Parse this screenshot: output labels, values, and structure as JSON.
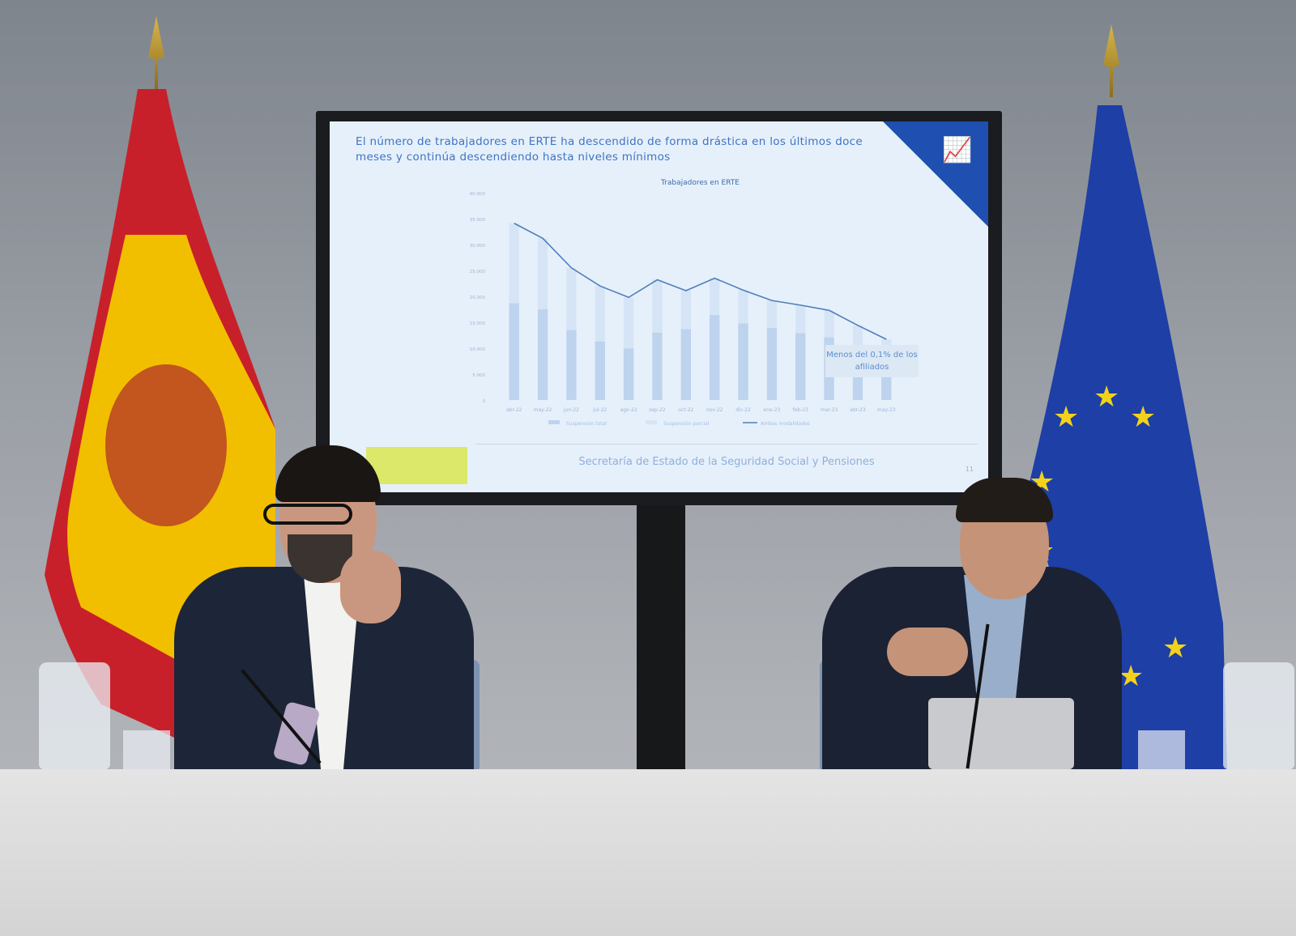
{
  "slide": {
    "title": "El número de trabajadores en ERTE ha descendido de forma drástica en los últimos doce meses y continúa descendiendo hasta niveles mínimos",
    "callout": "Menos del 0,1% de los afiliados",
    "footer": "Secretaría de Estado de la Seguridad Social y Pensiones",
    "page": "11",
    "icon": "presentation-chart-icon"
  },
  "chart_data": {
    "type": "bar",
    "title": "Trabajadores en ERTE",
    "categories": [
      "abr-22",
      "may-22",
      "jun-22",
      "jul-22",
      "ago-22",
      "sep-22",
      "oct-22",
      "nov-22",
      "dic-22",
      "ene-23",
      "feb-23",
      "mar-23",
      "abr-23",
      "may-23"
    ],
    "ylim": [
      0,
      40000
    ],
    "yticks": [
      "0",
      "5.000",
      "10.000",
      "15.000",
      "20.000",
      "25.000",
      "30.000",
      "35.000",
      "40.000"
    ],
    "series": [
      {
        "name": "Suspensión total",
        "type": "bar",
        "color": "#bdd3ee",
        "values": [
          18700,
          17500,
          13500,
          11300,
          9950,
          13000,
          13700,
          16400,
          14800,
          13900,
          12900,
          12100,
          10200,
          7500
        ]
      },
      {
        "name": "Suspensión parcial",
        "type": "bar",
        "color": "#d6e5f6",
        "values": [
          15400,
          13700,
          12000,
          10700,
          9850,
          10200,
          7400,
          7100,
          6400,
          5300,
          5400,
          5200,
          4200,
          4200
        ]
      },
      {
        "name": "Ambas modalidades",
        "type": "line",
        "color": "#4f7fb8",
        "values": [
          34100,
          31200,
          25500,
          22000,
          19800,
          23200,
          21100,
          23500,
          21200,
          19200,
          18300,
          17300,
          14400,
          11700
        ]
      }
    ],
    "legend": "bottom"
  },
  "colors": {
    "wall": "#9a9ea5",
    "table": "#dcdcdc",
    "eu_blue": "#1d3fa6",
    "spain_red": "#c8202a",
    "spain_yellow": "#f1bf00"
  }
}
